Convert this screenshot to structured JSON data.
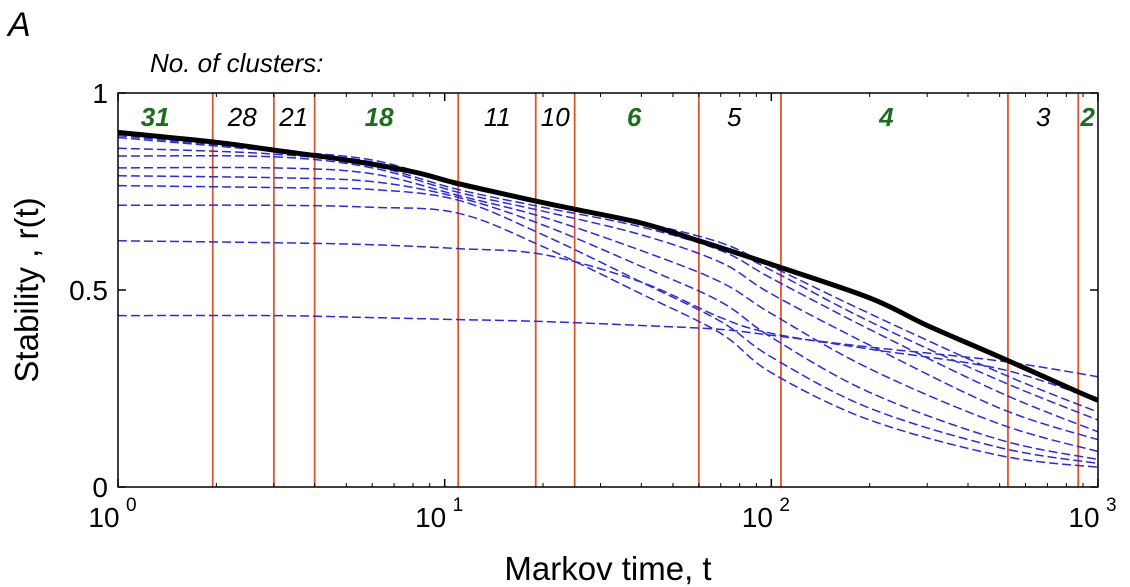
{
  "panel_label": "A",
  "clusters_title": "No. of clusters:",
  "chart_data": {
    "type": "line",
    "xlabel": "Markov time, t",
    "ylabel": "Stability ,  r(t)",
    "xscale": "log",
    "xlim": [
      1,
      1000
    ],
    "ylim": [
      0,
      1
    ],
    "x_ticks": [
      {
        "base": "10",
        "exp": "0",
        "value": 1
      },
      {
        "base": "10",
        "exp": "1",
        "value": 10
      },
      {
        "base": "10",
        "exp": "2",
        "value": 100
      },
      {
        "base": "10",
        "exp": "3",
        "value": 1000
      }
    ],
    "y_ticks": [
      {
        "label": "0",
        "value": 0
      },
      {
        "label": "0.5",
        "value": 0.5
      },
      {
        "label": "1",
        "value": 1
      }
    ],
    "envelope": {
      "color": "#000000",
      "x": [
        1,
        2,
        3,
        5,
        8,
        11,
        18,
        25,
        40,
        60,
        100,
        200,
        300,
        500,
        850,
        1000
      ],
      "y": [
        0.9,
        0.875,
        0.855,
        0.83,
        0.8,
        0.77,
        0.73,
        0.705,
        0.67,
        0.625,
        0.565,
        0.48,
        0.41,
        0.33,
        0.245,
        0.22
      ]
    },
    "dashed_series": [
      {
        "x": [
          1,
          3,
          6,
          11,
          20,
          40,
          70,
          100,
          200,
          500,
          1000
        ],
        "y": [
          0.892,
          0.855,
          0.83,
          0.77,
          0.725,
          0.672,
          0.62,
          0.56,
          0.44,
          0.29,
          0.19
        ]
      },
      {
        "x": [
          1,
          3,
          6,
          11,
          20,
          40,
          70,
          100,
          200,
          500,
          1000
        ],
        "y": [
          0.887,
          0.852,
          0.825,
          0.765,
          0.72,
          0.665,
          0.61,
          0.55,
          0.42,
          0.27,
          0.17
        ]
      },
      {
        "x": [
          1,
          3,
          6,
          11,
          20,
          40,
          70,
          100,
          200,
          500,
          1000
        ],
        "y": [
          0.86,
          0.845,
          0.815,
          0.755,
          0.71,
          0.66,
          0.6,
          0.53,
          0.4,
          0.24,
          0.14
        ]
      },
      {
        "x": [
          1,
          3,
          6,
          11,
          20,
          40,
          70,
          100,
          200,
          500,
          1000
        ],
        "y": [
          0.84,
          0.838,
          0.81,
          0.748,
          0.7,
          0.64,
          0.57,
          0.49,
          0.36,
          0.2,
          0.12
        ]
      },
      {
        "x": [
          1,
          3,
          6,
          11,
          20,
          40,
          70,
          100,
          200,
          500,
          1000
        ],
        "y": [
          0.81,
          0.81,
          0.795,
          0.74,
          0.685,
          0.6,
          0.52,
          0.44,
          0.3,
          0.16,
          0.09
        ]
      },
      {
        "x": [
          1,
          3,
          6,
          11,
          20,
          40,
          70,
          100,
          200,
          500,
          1000
        ],
        "y": [
          0.79,
          0.785,
          0.775,
          0.735,
          0.665,
          0.56,
          0.47,
          0.38,
          0.24,
          0.12,
          0.07
        ]
      },
      {
        "x": [
          1,
          3,
          6,
          11,
          20,
          40,
          70,
          100,
          200,
          500,
          1000
        ],
        "y": [
          0.765,
          0.76,
          0.755,
          0.728,
          0.64,
          0.52,
          0.42,
          0.33,
          0.2,
          0.1,
          0.06
        ]
      },
      {
        "x": [
          1,
          3,
          6,
          11,
          20,
          40,
          70,
          100,
          200,
          500,
          1000
        ],
        "y": [
          0.715,
          0.715,
          0.71,
          0.695,
          0.61,
          0.49,
          0.39,
          0.29,
          0.17,
          0.08,
          0.05
        ]
      },
      {
        "x": [
          1,
          3,
          6,
          11,
          20,
          40,
          70,
          100,
          200,
          500,
          1000
        ],
        "y": [
          0.625,
          0.62,
          0.615,
          0.605,
          0.59,
          0.52,
          0.43,
          0.39,
          0.35,
          0.3,
          0.22
        ]
      },
      {
        "x": [
          1,
          3,
          6,
          11,
          20,
          40,
          70,
          100,
          200,
          500,
          1000
        ],
        "y": [
          0.435,
          0.435,
          0.43,
          0.425,
          0.42,
          0.41,
          0.4,
          0.385,
          0.355,
          0.32,
          0.28
        ]
      }
    ],
    "dashed_color": "#2a2adf",
    "transition_lines": {
      "color": "#e0552d",
      "x": [
        1.95,
        3.0,
        4.0,
        11.0,
        19.0,
        25.0,
        60.0,
        107.0,
        530.0,
        870.0
      ]
    },
    "cluster_counts": [
      {
        "label": "31",
        "x": 1.3,
        "bold": true,
        "color": "#1f6b1f"
      },
      {
        "label": "28",
        "x": 2.4,
        "bold": false,
        "color": "#000000"
      },
      {
        "label": "21",
        "x": 3.45,
        "bold": false,
        "color": "#000000"
      },
      {
        "label": "18",
        "x": 6.3,
        "bold": true,
        "color": "#1f6b1f"
      },
      {
        "label": "11",
        "x": 14.5,
        "bold": false,
        "color": "#000000"
      },
      {
        "label": "10",
        "x": 21.8,
        "bold": false,
        "color": "#000000"
      },
      {
        "label": "6",
        "x": 38.0,
        "bold": true,
        "color": "#1f6b1f"
      },
      {
        "label": "5",
        "x": 77.0,
        "bold": false,
        "color": "#000000"
      },
      {
        "label": "4",
        "x": 225.0,
        "bold": true,
        "color": "#1f6b1f"
      },
      {
        "label": "3",
        "x": 680.0,
        "bold": false,
        "color": "#000000"
      },
      {
        "label": "2",
        "x": 930.0,
        "bold": true,
        "color": "#1f6b1f"
      }
    ]
  }
}
